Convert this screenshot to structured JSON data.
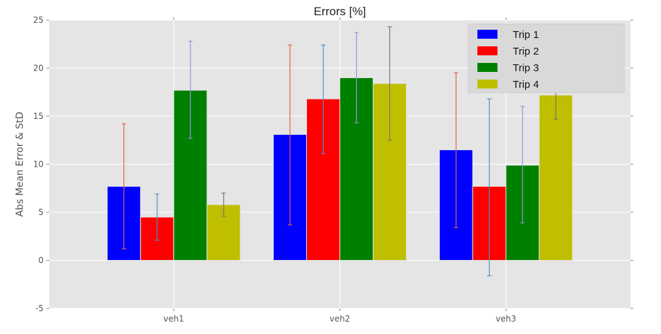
{
  "chart_data": {
    "type": "bar",
    "title": "Errors [%]",
    "xlabel": "",
    "ylabel": "Abs Mean Error & StD",
    "categories": [
      "veh1",
      "veh2",
      "veh3"
    ],
    "ylim": [
      -5,
      25
    ],
    "yticks": [
      -5,
      0,
      5,
      10,
      15,
      20,
      25
    ],
    "grid": true,
    "legend_position": "top-right",
    "series": [
      {
        "name": "Trip 1",
        "color": "#0000ff",
        "errorbar_color": "#e0604a",
        "values": [
          7.7,
          13.1,
          11.5
        ],
        "error_low": [
          1.2,
          3.7,
          3.4
        ],
        "error_high": [
          14.2,
          22.4,
          19.5
        ]
      },
      {
        "name": "Trip 2",
        "color": "#ff0000",
        "errorbar_color": "#4f8fd0",
        "values": [
          4.5,
          16.8,
          7.7
        ],
        "error_low": [
          2.1,
          11.1,
          -1.6
        ],
        "error_high": [
          6.9,
          22.4,
          16.8
        ]
      },
      {
        "name": "Trip 3",
        "color": "#008000",
        "errorbar_color": "#9b8fe0",
        "values": [
          17.7,
          19.0,
          9.9
        ],
        "error_low": [
          12.7,
          14.3,
          3.9
        ],
        "error_high": [
          22.8,
          23.7,
          16.0
        ]
      },
      {
        "name": "Trip 4",
        "color": "#bfbf00",
        "errorbar_color": "#777777",
        "values": [
          5.8,
          18.4,
          17.2
        ],
        "error_low": [
          4.6,
          12.5,
          14.7
        ],
        "error_high": [
          7.0,
          24.3,
          19.8
        ]
      }
    ]
  }
}
